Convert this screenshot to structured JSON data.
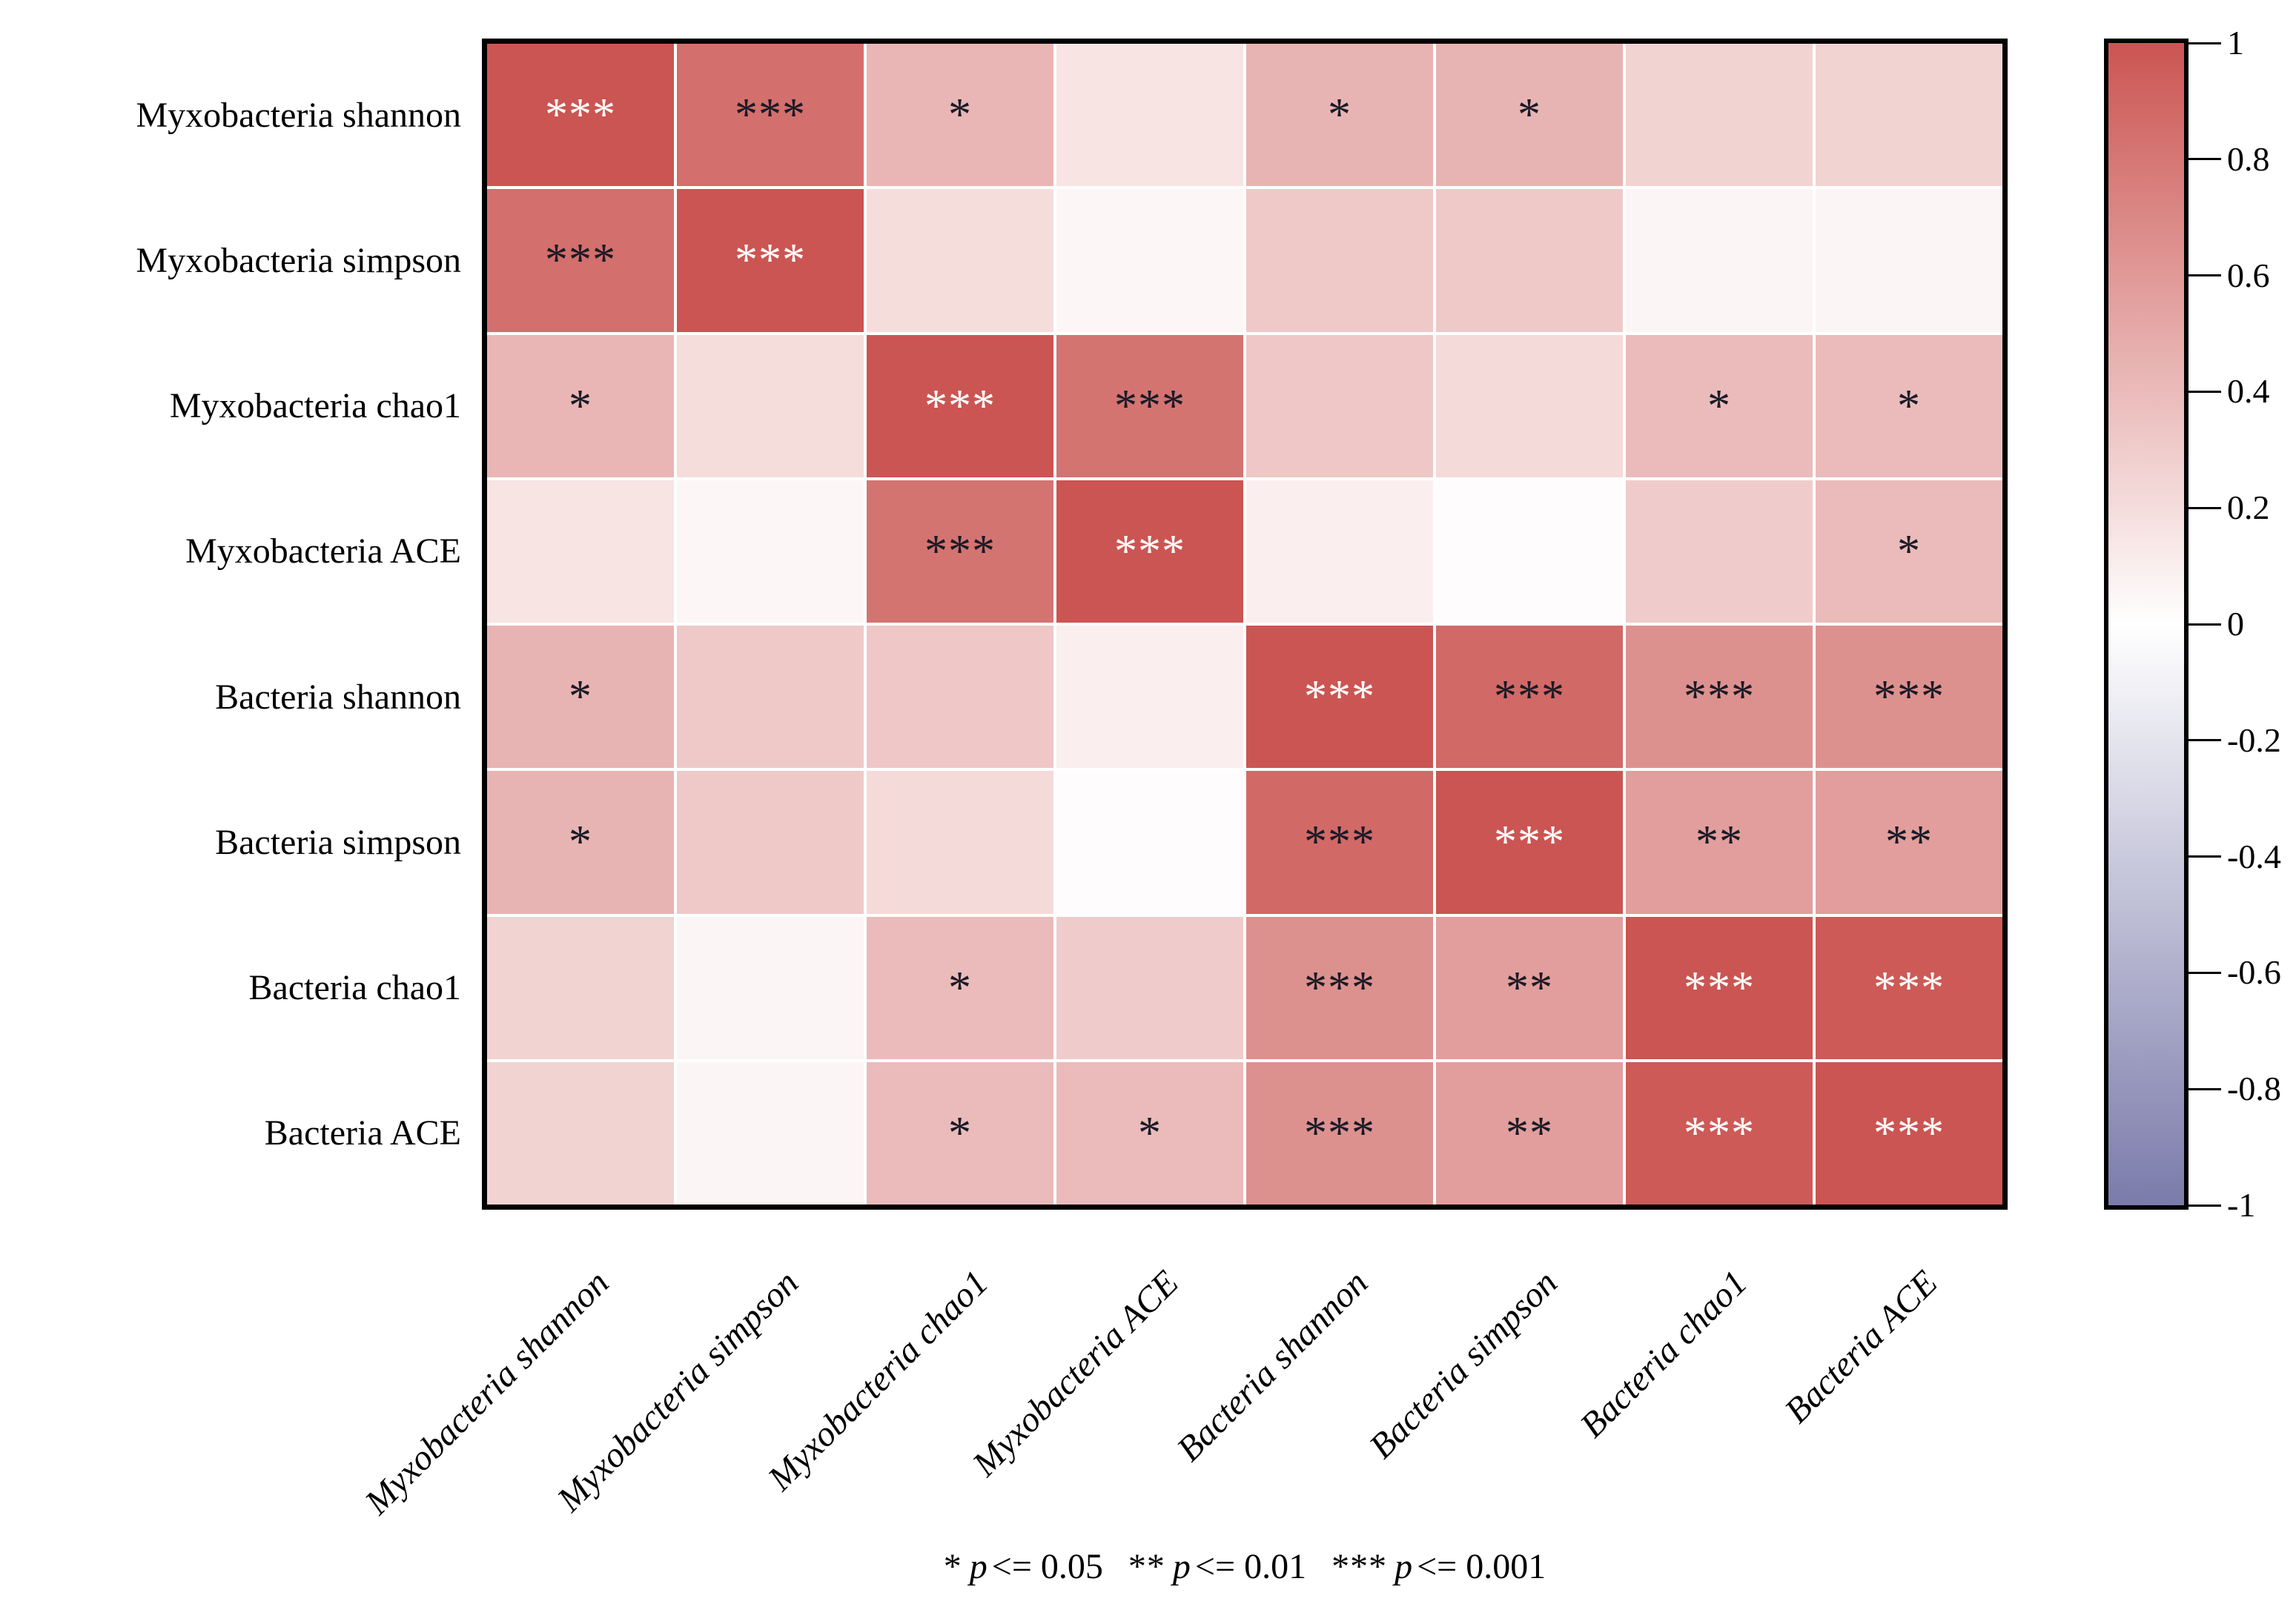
{
  "chart_data": {
    "type": "heatmap",
    "title": "",
    "row_labels": [
      "Myxobacteria shannon",
      "Myxobacteria simpson",
      "Myxobacteria chao1",
      "Myxobacteria ACE",
      "Bacteria shannon",
      "Bacteria simpson",
      "Bacteria chao1",
      "Bacteria ACE"
    ],
    "col_labels": [
      "Myxobacteria shannon",
      "Myxobacteria simpson",
      "Myxobacteria chao1",
      "Myxobacteria ACE",
      "Bacteria shannon",
      "Bacteria simpson",
      "Bacteria chao1",
      "Bacteria ACE"
    ],
    "matrix": [
      [
        1.0,
        0.85,
        0.43,
        0.16,
        0.44,
        0.44,
        0.26,
        0.26
      ],
      [
        0.85,
        1.0,
        0.2,
        0.05,
        0.32,
        0.32,
        0.06,
        0.06
      ],
      [
        0.43,
        0.2,
        1.0,
        0.82,
        0.33,
        0.22,
        0.4,
        0.4
      ],
      [
        0.16,
        0.05,
        0.82,
        1.0,
        0.1,
        0.02,
        0.3,
        0.4
      ],
      [
        0.44,
        0.32,
        0.33,
        0.1,
        1.0,
        0.88,
        0.65,
        0.65
      ],
      [
        0.44,
        0.32,
        0.22,
        0.02,
        0.88,
        1.0,
        0.57,
        0.57
      ],
      [
        0.26,
        0.06,
        0.4,
        0.3,
        0.65,
        0.57,
        1.0,
        0.97
      ],
      [
        0.26,
        0.06,
        0.4,
        0.4,
        0.65,
        0.57,
        0.97,
        1.0
      ]
    ],
    "significance": [
      [
        "***",
        "***",
        "*",
        "",
        "*",
        "*",
        "",
        ""
      ],
      [
        "***",
        "***",
        "",
        "",
        "",
        "",
        "",
        ""
      ],
      [
        "*",
        "",
        "***",
        "***",
        "",
        "",
        "*",
        "*"
      ],
      [
        "",
        "",
        "***",
        "***",
        "",
        "",
        "",
        "*"
      ],
      [
        "*",
        "",
        "",
        "",
        "***",
        "***",
        "***",
        "***"
      ],
      [
        "*",
        "",
        "",
        "",
        "***",
        "***",
        "**",
        "**"
      ],
      [
        "",
        "",
        "*",
        "",
        "***",
        "**",
        "***",
        "***"
      ],
      [
        "",
        "",
        "*",
        "*",
        "***",
        "**",
        "***",
        "***"
      ]
    ],
    "value_range": [
      -1,
      1
    ],
    "colorbar": {
      "tick_labels": [
        "1",
        "0.8",
        "0.6",
        "0.4",
        "0.2",
        "0",
        "-0.2",
        "-0.4",
        "-0.6",
        "-0.8",
        "-1"
      ],
      "tick_values": [
        1,
        0.8,
        0.6,
        0.4,
        0.2,
        0,
        -0.2,
        -0.4,
        -0.6,
        -0.8,
        -1
      ],
      "max_color": "#cb5552",
      "mid_color": "#ffffff",
      "min_color": "#7b7bab"
    },
    "footnote": {
      "p_symbol": "p",
      "entries": [
        {
          "stars": "*",
          "op": "<=",
          "value": "0.05"
        },
        {
          "stars": "**",
          "op": "<=",
          "value": "0.01"
        },
        {
          "stars": "***",
          "op": "<=",
          "value": "0.001"
        }
      ]
    },
    "style": {
      "star_dark_color": "#1a1a26",
      "star_light_color": "#ffffff",
      "star_white_threshold": 0.93,
      "grid_line_color": "#ffffff",
      "border_color": "#000000",
      "background_color": "#ffffff"
    },
    "layout_hints": {
      "legend_position": "right",
      "x_tick_rotation_deg": 45,
      "grid": "white-lines"
    }
  }
}
